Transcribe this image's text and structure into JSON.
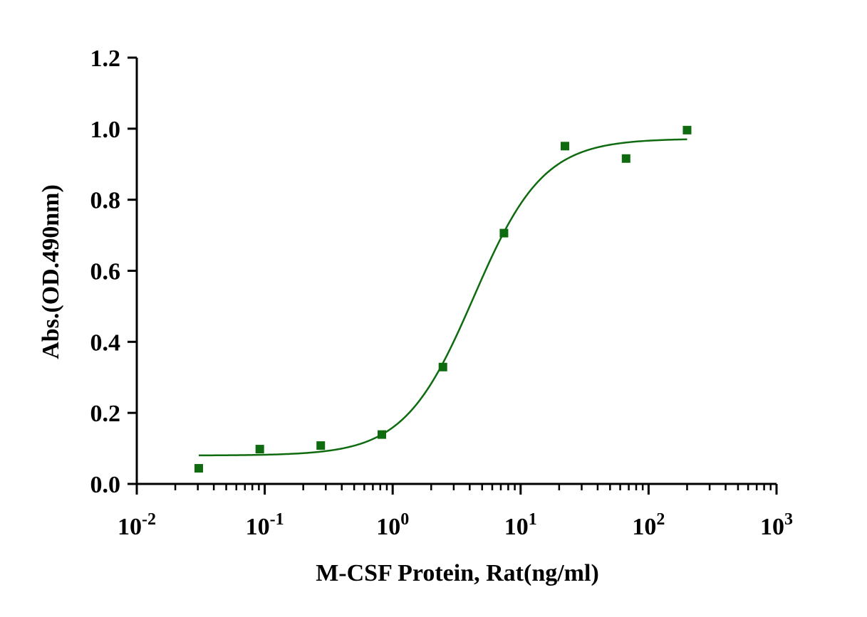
{
  "chart_data": {
    "type": "scatter",
    "title": "",
    "xlabel": "M-CSF Protein, Rat(ng/ml)",
    "ylabel": "Abs.(OD.490nm)",
    "xscale": "log",
    "xlim": [
      0.01,
      1000
    ],
    "ylim": [
      0,
      1.2
    ],
    "grid": false,
    "legend": "none",
    "yticks": [
      "0.0",
      "0.2",
      "0.4",
      "0.6",
      "0.8",
      "1.0",
      "1.2"
    ],
    "xticks": [
      {
        "base": "10",
        "exp": "-2"
      },
      {
        "base": "10",
        "exp": "-1"
      },
      {
        "base": "10",
        "exp": "0"
      },
      {
        "base": "10",
        "exp": "1"
      },
      {
        "base": "10",
        "exp": "2"
      },
      {
        "base": "10",
        "exp": "3"
      }
    ],
    "series": [
      {
        "marker": "square",
        "color": "#0f6b0f",
        "x": [
          0.0305,
          0.0915,
          0.274,
          0.823,
          2.47,
          7.41,
          22.2,
          66.7,
          200
        ],
        "y": [
          0.044,
          0.098,
          0.108,
          0.139,
          0.329,
          0.706,
          0.951,
          0.916,
          0.996
        ]
      }
    ],
    "fit_curve": {
      "type": "4PL sigmoid",
      "color": "#0f6b0f",
      "bottom": 0.08,
      "top": 0.972,
      "ec50": 4.3,
      "hill": 1.6,
      "x_range": [
        0.0305,
        200
      ]
    }
  }
}
